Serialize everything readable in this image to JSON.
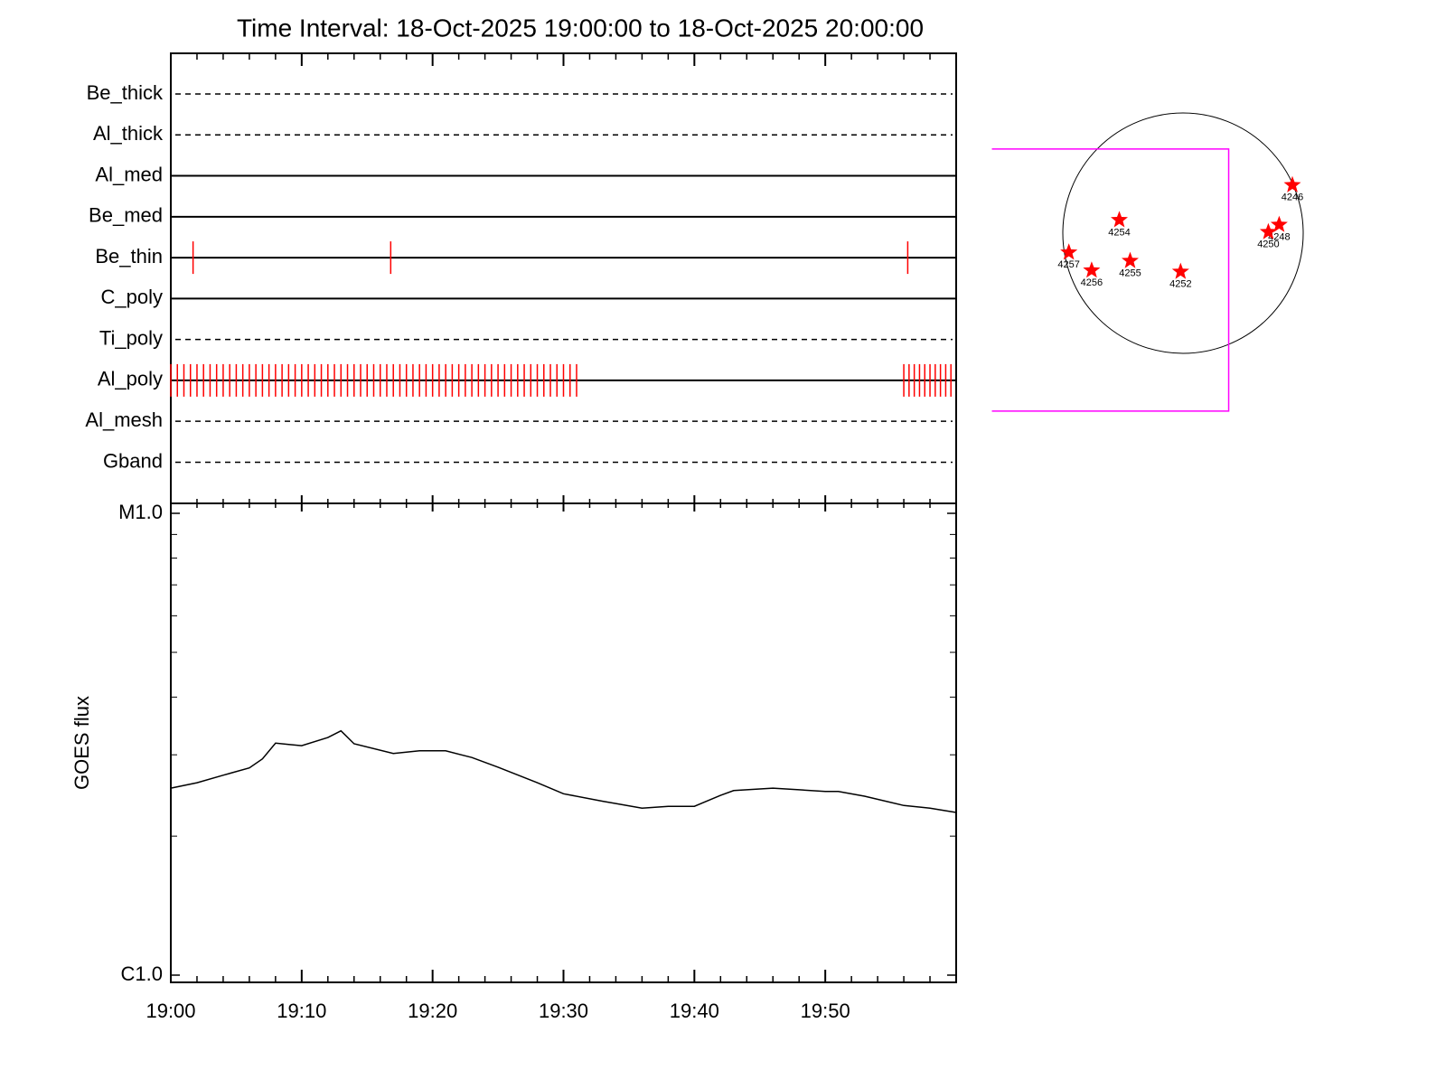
{
  "chart_data": {
    "type": "timeline",
    "title": "Time Interval: 18-Oct-2025 19:00:00 to 18-Oct-2025 20:00:00",
    "xlim": [
      0,
      60
    ],
    "xticks": [
      {
        "value": 0,
        "label": "19:00"
      },
      {
        "value": 10,
        "label": "19:10"
      },
      {
        "value": 20,
        "label": "19:20"
      },
      {
        "value": 30,
        "label": "19:30"
      },
      {
        "value": 40,
        "label": "19:40"
      },
      {
        "value": 50,
        "label": "19:50"
      }
    ],
    "xminorticks": [
      2,
      4,
      6,
      8,
      12,
      14,
      16,
      18,
      22,
      24,
      26,
      28,
      32,
      34,
      36,
      38,
      42,
      44,
      46,
      48,
      52,
      54,
      56,
      58
    ],
    "filters": [
      {
        "name": "Be_thick",
        "style": "dashed",
        "times": []
      },
      {
        "name": "Al_thick",
        "style": "dashed",
        "times": []
      },
      {
        "name": "Al_med",
        "style": "solid",
        "times": []
      },
      {
        "name": "Be_med",
        "style": "solid",
        "times": []
      },
      {
        "name": "Be_thin",
        "style": "solid",
        "times": [
          1.7,
          16.8,
          56.3
        ]
      },
      {
        "name": "C_poly",
        "style": "solid",
        "times": []
      },
      {
        "name": "Ti_poly",
        "style": "dashed",
        "times": []
      },
      {
        "name": "Al_poly",
        "style": "solid",
        "times": [
          0,
          0.5,
          1,
          1.5,
          2,
          2.5,
          3,
          3.5,
          4,
          4.5,
          5,
          5.5,
          6,
          6.5,
          7,
          7.5,
          8,
          8.5,
          9,
          9.5,
          10,
          10.5,
          11,
          11.5,
          12,
          12.5,
          13,
          13.5,
          14,
          14.5,
          15,
          15.5,
          16,
          16.5,
          17,
          17.5,
          18,
          18.5,
          19,
          19.5,
          20,
          20.5,
          21,
          21.5,
          22,
          22.5,
          23,
          23.5,
          24,
          24.5,
          25,
          25.5,
          26,
          26.5,
          27,
          27.5,
          28,
          28.5,
          29,
          29.5,
          30,
          30.5,
          31,
          56,
          56.4,
          56.8,
          57.2,
          57.6,
          58,
          58.4,
          58.8,
          59.2,
          59.6
        ]
      },
      {
        "name": "Al_mesh",
        "style": "dashed",
        "times": []
      },
      {
        "name": "Gband",
        "style": "dashed",
        "times": []
      }
    ],
    "mark_color": "#ff0000",
    "goes": {
      "ylabel": "GOES flux",
      "log": true,
      "ylim": [
        1e-06,
        1e-05
      ],
      "yticks": [
        {
          "value": 1e-05,
          "label": "M1.0"
        },
        {
          "value": 1e-06,
          "label": "C1.0"
        }
      ],
      "yminorticks": [
        2e-06,
        3e-06,
        4e-06,
        5e-06,
        6e-06,
        7e-06,
        8e-06,
        9e-06
      ],
      "color": "#000000",
      "x": [
        0,
        2,
        4,
        6,
        7,
        8,
        9,
        10,
        12,
        13,
        14,
        17,
        19,
        21,
        23,
        25,
        28,
        30,
        33,
        36,
        38,
        40,
        42,
        43,
        46,
        48,
        50,
        51,
        53,
        56,
        58,
        60
      ],
      "values": [
        2.54e-06,
        2.61e-06,
        2.71e-06,
        2.81e-06,
        2.94e-06,
        3.18e-06,
        3.16e-06,
        3.14e-06,
        3.27e-06,
        3.38e-06,
        3.17e-06,
        3.02e-06,
        3.06e-06,
        3.06e-06,
        2.96e-06,
        2.82e-06,
        2.61e-06,
        2.47e-06,
        2.38e-06,
        2.3e-06,
        2.32e-06,
        2.32e-06,
        2.45e-06,
        2.51e-06,
        2.54e-06,
        2.52e-06,
        2.5e-06,
        2.5e-06,
        2.44e-06,
        2.33e-06,
        2.3e-06,
        2.25e-06
      ]
    },
    "disk": {
      "box_color": "#ff00ff",
      "star_color": "#ff0000",
      "box": {
        "x": [
          -1.59,
          0.38
        ],
        "y": [
          -1.48,
          0.7
        ]
      },
      "regions": [
        {
          "name": "4246",
          "x": 0.91,
          "y": 0.4
        },
        {
          "name": "4248",
          "x": 0.8,
          "y": 0.07
        },
        {
          "name": "4250",
          "x": 0.71,
          "y": 0.01
        },
        {
          "name": "4254",
          "x": -0.53,
          "y": 0.11
        },
        {
          "name": "4257",
          "x": -0.95,
          "y": -0.16
        },
        {
          "name": "4256",
          "x": -0.76,
          "y": -0.31
        },
        {
          "name": "4255",
          "x": -0.44,
          "y": -0.23
        },
        {
          "name": "4252",
          "x": -0.02,
          "y": -0.32
        }
      ]
    }
  }
}
